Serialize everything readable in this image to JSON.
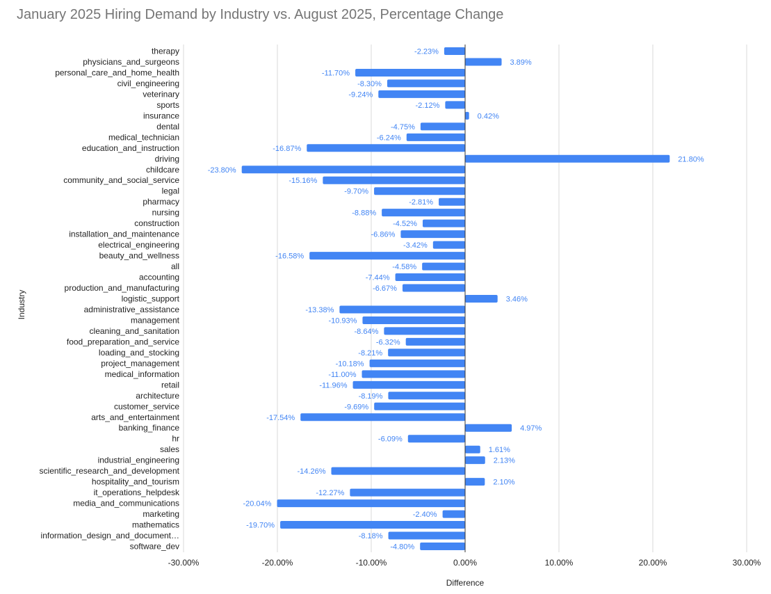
{
  "chart_data": {
    "type": "bar",
    "orientation": "horizontal",
    "title": "January 2025 Hiring Demand by Industry vs. August 2025, Percentage Change",
    "xlabel": "Difference",
    "ylabel": "Industry",
    "xlim": [
      -30,
      30
    ],
    "x_ticks": [
      -30,
      -20,
      -10,
      0,
      10,
      20,
      30
    ],
    "x_tick_labels": [
      "-30.00%",
      "-20.00%",
      "-10.00%",
      "0.00%",
      "10.00%",
      "20.00%",
      "30.00%"
    ],
    "grid": true,
    "legend": "none",
    "bar_color": "#4285f4",
    "label_color": "#4285f4",
    "categories": [
      "therapy",
      "physicians_and_surgeons",
      "personal_care_and_home_health",
      "civil_engineering",
      "veterinary",
      "sports",
      "insurance",
      "dental",
      "medical_technician",
      "education_and_instruction",
      "driving",
      "childcare",
      "community_and_social_service",
      "legal",
      "pharmacy",
      "nursing",
      "construction",
      "installation_and_maintenance",
      "electrical_engineering",
      "beauty_and_wellness",
      "all",
      "accounting",
      "production_and_manufacturing",
      "logistic_support",
      "administrative_assistance",
      "management",
      "cleaning_and_sanitation",
      "food_preparation_and_service",
      "loading_and_stocking",
      "project_management",
      "medical_information",
      "retail",
      "architecture",
      "customer_service",
      "arts_and_entertainment",
      "banking_finance",
      "hr",
      "sales",
      "industrial_engineering",
      "scientific_research_and_development",
      "hospitality_and_tourism",
      "it_operations_helpdesk",
      "media_and_communications",
      "marketing",
      "mathematics",
      "information_design_and_document…",
      "software_dev"
    ],
    "values": [
      -2.23,
      3.89,
      -11.7,
      -8.3,
      -9.24,
      -2.12,
      0.42,
      -4.75,
      -6.24,
      -16.87,
      21.8,
      -23.8,
      -15.16,
      -9.7,
      -2.81,
      -8.88,
      -4.52,
      -6.86,
      -3.42,
      -16.58,
      -4.58,
      -7.44,
      -6.67,
      3.46,
      -13.38,
      -10.93,
      -8.64,
      -6.32,
      -8.21,
      -10.18,
      -11.0,
      -11.96,
      -8.19,
      -9.69,
      -17.54,
      4.97,
      -6.09,
      1.61,
      2.13,
      -14.26,
      2.1,
      -12.27,
      -20.04,
      -2.4,
      -19.7,
      -8.18,
      -4.8
    ],
    "data_labels": [
      "-2.23%",
      "3.89%",
      "-11.70%",
      "-8.30%",
      "-9.24%",
      "-2.12%",
      "0.42%",
      "-4.75%",
      "-6.24%",
      "-16.87%",
      "21.80%",
      "-23.80%",
      "-15.16%",
      "-9.70%",
      "-2.81%",
      "-8.88%",
      "-4.52%",
      "-6.86%",
      "-3.42%",
      "-16.58%",
      "-4.58%",
      "-7.44%",
      "-6.67%",
      "3.46%",
      "-13.38%",
      "-10.93%",
      "-8.64%",
      "-6.32%",
      "-8.21%",
      "-10.18%",
      "-11.00%",
      "-11.96%",
      "-8.19%",
      "-9.69%",
      "-17.54%",
      "4.97%",
      "-6.09%",
      "1.61%",
      "2.13%",
      "-14.26%",
      "2.10%",
      "-12.27%",
      "-20.04%",
      "-2.40%",
      "-19.70%",
      "-8.18%",
      "-4.80%"
    ]
  }
}
